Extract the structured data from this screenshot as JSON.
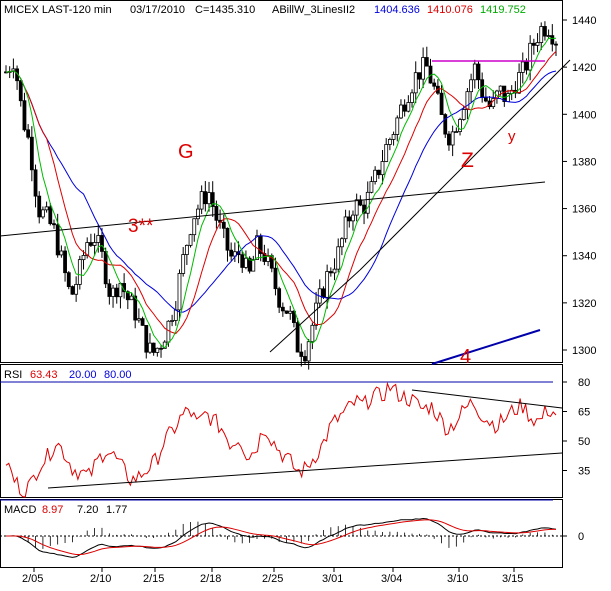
{
  "header": {
    "symbol": "MICEX LAST-120 min",
    "date": "03/17/2010",
    "close_text": "C=1435.310",
    "indicator_name": "ABillW_3LinesII2",
    "ind_v1": "1404.636",
    "ind_v2": "1410.076",
    "ind_v3": "1419.752"
  },
  "colors": {
    "candle": "#000000",
    "ma_fast": "#00bb00",
    "ma_mid": "#dd0000",
    "ma_slow": "#0000dd",
    "rsi": "#dd0000",
    "annotation_red": "#dd0000",
    "annotation_blue": "#0000aa",
    "resistance": "#cc00cc",
    "level_line": "#0000aa"
  },
  "annotations": {
    "g": "G",
    "three": "3**",
    "z": "Z",
    "y": "y",
    "four": "4"
  },
  "rsi_panel": {
    "label": "RSI",
    "value": "63.43",
    "low": "20.00",
    "high": "80.00",
    "ticks": [
      "80",
      "65",
      "50",
      "35"
    ]
  },
  "macd_panel": {
    "label": "MACD",
    "v1": "8.97",
    "v2": "7.20",
    "v3": "1.77",
    "ticks": [
      "0"
    ]
  },
  "chart_data": {
    "type": "line",
    "title": "MICEX LAST-120 min",
    "xlabel": "",
    "ylabel": "",
    "x_ticks": [
      "2/05",
      "2/10",
      "2/15",
      "2/18",
      "2/25",
      "3/01",
      "3/04",
      "3/10",
      "3/15"
    ],
    "y_ticks": [
      1300,
      1320,
      1340,
      1360,
      1380,
      1400,
      1420,
      1440
    ],
    "ylim": [
      1290,
      1445
    ],
    "grid": false,
    "price_path": [
      1418,
      1424,
      1400,
      1386,
      1360,
      1356,
      1350,
      1336,
      1322,
      1332,
      1346,
      1348,
      1338,
      1322,
      1330,
      1322,
      1316,
      1306,
      1298,
      1302,
      1310,
      1322,
      1340,
      1356,
      1362,
      1368,
      1356,
      1346,
      1338,
      1342,
      1330,
      1344,
      1340,
      1330,
      1320,
      1316,
      1302,
      1300,
      1312,
      1324,
      1334,
      1340,
      1352,
      1362,
      1360,
      1366,
      1376,
      1386,
      1394,
      1404,
      1412,
      1418,
      1420,
      1410,
      1396,
      1390,
      1400,
      1410,
      1420,
      1408,
      1402,
      1410,
      1406,
      1414,
      1418,
      1428,
      1436,
      1438,
      1432
    ],
    "rsi_path": [
      40,
      30,
      25,
      28,
      38,
      42,
      50,
      44,
      36,
      34,
      32,
      40,
      46,
      42,
      36,
      30,
      32,
      36,
      40,
      50,
      55,
      62,
      66,
      58,
      64,
      60,
      56,
      48,
      52,
      42,
      46,
      58,
      50,
      44,
      40,
      34,
      36,
      42,
      48,
      58,
      62,
      66,
      70,
      68,
      74,
      72,
      78,
      74,
      72,
      70,
      66,
      68,
      62,
      56,
      60,
      66,
      70,
      64,
      60,
      58,
      62,
      66,
      68,
      62,
      60,
      66,
      64
    ],
    "rsi_levels": [
      80,
      20
    ],
    "annotation_levels": {
      "resistance": 1422,
      "support_line": [
        1350,
        1372
      ]
    }
  }
}
